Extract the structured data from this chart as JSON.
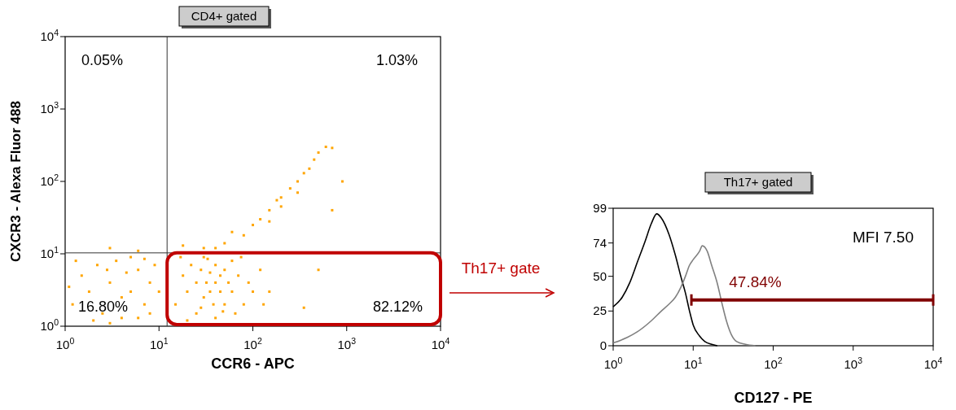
{
  "chart_data": [
    {
      "type": "scatter",
      "title": "CD4+ gated",
      "xlabel": "CCR6 - APC",
      "ylabel": "CXCR3 - Alexa Fluor 488",
      "log": "xy",
      "marker": "square",
      "xlim": [
        1,
        10000
      ],
      "ylim": [
        1,
        10000
      ],
      "xticks": [
        {
          "value": 1,
          "label": "10$^{0}$"
        },
        {
          "value": 10,
          "label": "10$^{1}$"
        },
        {
          "value": 100,
          "label": "10$^{2}$"
        },
        {
          "value": 1000,
          "label": "10$^{3}$"
        },
        {
          "value": 10000,
          "label": "10$^{4}$"
        }
      ],
      "yticks": [
        {
          "value": 1,
          "label": "10$^{0}$"
        },
        {
          "value": 10,
          "label": "10$^{1}$"
        },
        {
          "value": 100,
          "label": "10$^{2}$"
        },
        {
          "value": 1000,
          "label": "10$^{3}$"
        },
        {
          "value": 10000,
          "label": "10$^{4}$"
        }
      ],
      "ref_lines": [
        {
          "axis": "x",
          "value": 12.2,
          "color": "#333333"
        },
        {
          "axis": "y",
          "value": 10.3,
          "color": "#333333"
        }
      ],
      "annotations": [
        "0.05%",
        "1.03%",
        "16.80%",
        "82.12%",
        "Th17+ gate"
      ],
      "series": [
        {
          "color": "#ffa500",
          "x": [
            1.2,
            1.5,
            1.8,
            2.2,
            2.5,
            3,
            3.5,
            4,
            4.5,
            5,
            6,
            7,
            8,
            9,
            10,
            1.3,
            2,
            6,
            3,
            5,
            8,
            1.1,
            2.8,
            7,
            4,
            15,
            18,
            20,
            22,
            25,
            25,
            28,
            30,
            30,
            32,
            35,
            35,
            38,
            40,
            40,
            45,
            45,
            50,
            50,
            55,
            60,
            60,
            70,
            80,
            90,
            100,
            120,
            150,
            20,
            40,
            17,
            28,
            33,
            48,
            65,
            75,
            130,
            30,
            50,
            60,
            80,
            100,
            120,
            150,
            180,
            200,
            250,
            300,
            300,
            350,
            400,
            450,
            500,
            600,
            700,
            200,
            150,
            18,
            40,
            700,
            500,
            350,
            900,
            3,
            6
          ],
          "values": [
            2,
            5,
            3,
            7,
            1.5,
            4,
            8,
            2.5,
            5.5,
            3,
            6,
            2,
            4,
            7,
            3,
            8,
            1.2,
            1.3,
            1.1,
            9,
            1.5,
            3.5,
            6,
            8.5,
            1.3,
            2,
            5,
            3,
            7,
            1.5,
            4,
            6,
            2.5,
            9,
            4,
            3,
            5.5,
            2,
            4,
            7,
            3,
            5,
            2,
            6,
            4,
            3,
            8,
            5,
            2,
            4,
            3,
            6,
            3,
            1.2,
            1.3,
            9,
            1.8,
            8.5,
            1.6,
            1.5,
            9,
            2,
            12,
            14,
            20,
            18,
            25,
            30,
            40,
            55,
            60,
            80,
            100,
            70,
            130,
            150,
            200,
            250,
            300,
            290,
            45,
            28,
            13,
            12,
            40,
            6,
            1.8,
            100,
            12,
            11
          ]
        }
      ]
    },
    {
      "type": "line",
      "title": "Th17+ gated",
      "xlabel": "CD127 - PE",
      "log": "x",
      "xlim": [
        1,
        10000
      ],
      "ylim": [
        0,
        99
      ],
      "xticks": [
        {
          "value": 1,
          "label": "10$^{0}$"
        },
        {
          "value": 10,
          "label": "10$^{1}$"
        },
        {
          "value": 100,
          "label": "10$^{2}$"
        },
        {
          "value": 1000,
          "label": "10$^{3}$"
        },
        {
          "value": 10000,
          "label": "10$^{4}$"
        }
      ],
      "yticks": [
        0,
        25,
        50,
        74,
        99
      ],
      "annotations": [
        "MFI 7.50"
      ],
      "series": [
        {
          "color": "#000000",
          "x": [
            1,
            1.3,
            1.6,
            2,
            2.5,
            3,
            3.5,
            4,
            5,
            6,
            7,
            8,
            9,
            10,
            12,
            14,
            17,
            20
          ],
          "values": [
            28,
            35,
            45,
            60,
            75,
            88,
            95,
            92,
            80,
            65,
            50,
            38,
            25,
            15,
            7,
            3,
            1,
            0
          ]
        },
        {
          "color": "#808080",
          "x": [
            1,
            1.5,
            2,
            3,
            4,
            5,
            6,
            7,
            8,
            9,
            10,
            12,
            13,
            15,
            17,
            20,
            23,
            26,
            30,
            35,
            45,
            60
          ],
          "values": [
            2,
            6,
            10,
            18,
            25,
            30,
            35,
            42,
            50,
            58,
            62,
            68,
            72,
            68,
            58,
            45,
            30,
            18,
            8,
            3,
            1,
            0
          ]
        },
        {
          "name": "47.84%",
          "color": "#800000",
          "x": [
            9.5,
            10000
          ],
          "values": [
            33,
            33
          ]
        }
      ]
    }
  ]
}
